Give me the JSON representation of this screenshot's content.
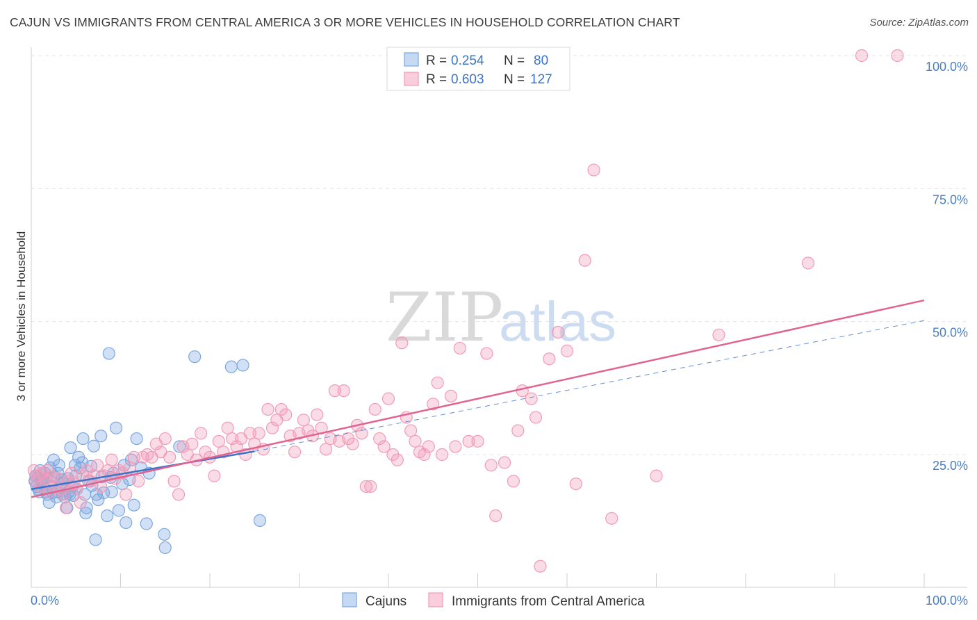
{
  "header": {
    "title": "CAJUN VS IMMIGRANTS FROM CENTRAL AMERICA 3 OR MORE VEHICLES IN HOUSEHOLD CORRELATION CHART",
    "source": "Source: ZipAtlas.com"
  },
  "watermark": {
    "zip": "ZIP",
    "atlas": "atlas"
  },
  "chart_data": {
    "type": "scatter",
    "ylabel": "3 or more Vehicles in Household",
    "xlim": [
      0,
      100
    ],
    "ylim": [
      0,
      105
    ],
    "x_tick_labels": [
      "0.0%",
      "100.0%"
    ],
    "y_ticks": [
      25,
      50,
      75,
      100
    ],
    "y_tick_labels": [
      "25.0%",
      "50.0%",
      "75.0%",
      "100.0%"
    ],
    "grid": true,
    "legend_position": "top-center",
    "stats": [
      {
        "r_label": "R =",
        "r_value": "0.254",
        "n_label": "N =",
        "n_value": "80"
      },
      {
        "r_label": "R =",
        "r_value": "0.603",
        "n_label": "N =",
        "n_value": "127"
      }
    ],
    "series": [
      {
        "name": "Cajuns",
        "color": "#7ba7e0",
        "line_color": "#3b73c9",
        "trend": {
          "x0": 0,
          "y0": 18.5,
          "x1": 25,
          "y1": 25.6
        },
        "trend_ext": {
          "x0": 25,
          "y0": 25.6,
          "x1": 100,
          "y1": 50.2
        },
        "points": [
          [
            0.5,
            21
          ],
          [
            0.6,
            19
          ],
          [
            0.8,
            18.5
          ],
          [
            1,
            22
          ],
          [
            1.1,
            20
          ],
          [
            1.2,
            20.3
          ],
          [
            1.3,
            19.6
          ],
          [
            1.5,
            21.5
          ],
          [
            1.6,
            18
          ],
          [
            1.8,
            17.5
          ],
          [
            2,
            16
          ],
          [
            2.1,
            22.5
          ],
          [
            2.2,
            19
          ],
          [
            2.4,
            17.8
          ],
          [
            2.5,
            24
          ],
          [
            2.6,
            20.8
          ],
          [
            2.8,
            17
          ],
          [
            3,
            21.5
          ],
          [
            3.1,
            23
          ],
          [
            3.3,
            18.8
          ],
          [
            3.5,
            17.5
          ],
          [
            3.6,
            19.8
          ],
          [
            3.8,
            17
          ],
          [
            4,
            15
          ],
          [
            4.1,
            20.5
          ],
          [
            4.2,
            18
          ],
          [
            4.4,
            26.3
          ],
          [
            4.6,
            19
          ],
          [
            4.7,
            17.3
          ],
          [
            4.9,
            23
          ],
          [
            5,
            21
          ],
          [
            5.1,
            18.5
          ],
          [
            5.3,
            24.5
          ],
          [
            5.5,
            22.5
          ],
          [
            5.7,
            23.5
          ],
          [
            5.8,
            28
          ],
          [
            6,
            17.5
          ],
          [
            6.1,
            14
          ],
          [
            6.2,
            15
          ],
          [
            6.4,
            20
          ],
          [
            6.7,
            22.8
          ],
          [
            7,
            26.6
          ],
          [
            7.2,
            9
          ],
          [
            7.3,
            17.5
          ],
          [
            7.5,
            16.5
          ],
          [
            7.8,
            28.5
          ],
          [
            7.9,
            20.8
          ],
          [
            8.1,
            17.8
          ],
          [
            8.5,
            13.5
          ],
          [
            8.7,
            44
          ],
          [
            8.9,
            20.7
          ],
          [
            9.2,
            21.5
          ],
          [
            9.5,
            30
          ],
          [
            9.8,
            14.5
          ],
          [
            10.2,
            19.5
          ],
          [
            10.4,
            23
          ],
          [
            10.6,
            12.2
          ],
          [
            11,
            20.3
          ],
          [
            11.2,
            24
          ],
          [
            11.5,
            15.5
          ],
          [
            11.8,
            28
          ],
          [
            12.3,
            22.5
          ],
          [
            12.9,
            12
          ],
          [
            13.2,
            21.5
          ],
          [
            14.9,
            10
          ],
          [
            15,
            7.5
          ],
          [
            16.6,
            26.5
          ],
          [
            18.3,
            43.4
          ],
          [
            22.4,
            41.5
          ],
          [
            23.7,
            41.8
          ],
          [
            25.6,
            12.6
          ],
          [
            0.9,
            18
          ],
          [
            1.7,
            20.6
          ],
          [
            3.4,
            20.3
          ],
          [
            6.8,
            19.2
          ],
          [
            9,
            18
          ],
          [
            2.9,
            18
          ],
          [
            4.3,
            17.5
          ],
          [
            0.4,
            20
          ],
          [
            0.7,
            21
          ]
        ]
      },
      {
        "name": "Immigrants from Central America",
        "color": "#f19bb7",
        "line_color": "#e0648f",
        "trend": {
          "x0": 0,
          "y0": 17,
          "x1": 100,
          "y1": 54
        },
        "points": [
          [
            0.3,
            22
          ],
          [
            0.5,
            20
          ],
          [
            0.7,
            21
          ],
          [
            1,
            19
          ],
          [
            1.2,
            21.5
          ],
          [
            1.5,
            20.5
          ],
          [
            1.8,
            22
          ],
          [
            2,
            18
          ],
          [
            2.3,
            20.8
          ],
          [
            2.6,
            19
          ],
          [
            3,
            20.5
          ],
          [
            3.3,
            18.5
          ],
          [
            3.6,
            17.5
          ],
          [
            3.9,
            15
          ],
          [
            4.2,
            20
          ],
          [
            4.5,
            21.5
          ],
          [
            4.8,
            19.5
          ],
          [
            5.1,
            18.5
          ],
          [
            5.5,
            16
          ],
          [
            5.8,
            21
          ],
          [
            6.2,
            22
          ],
          [
            6.6,
            20
          ],
          [
            7,
            21
          ],
          [
            7.4,
            23
          ],
          [
            7.8,
            19
          ],
          [
            8.2,
            21
          ],
          [
            8.6,
            22
          ],
          [
            9,
            24
          ],
          [
            9.4,
            20.5
          ],
          [
            9.8,
            22
          ],
          [
            10.2,
            21.5
          ],
          [
            10.6,
            17.5
          ],
          [
            11,
            22.5
          ],
          [
            11.5,
            24.5
          ],
          [
            12,
            20
          ],
          [
            12.5,
            24.5
          ],
          [
            13,
            25
          ],
          [
            13.5,
            24.5
          ],
          [
            14,
            27
          ],
          [
            14.5,
            25.5
          ],
          [
            15,
            28
          ],
          [
            15.5,
            24.5
          ],
          [
            16,
            20
          ],
          [
            16.5,
            17.5
          ],
          [
            17,
            26.5
          ],
          [
            17.5,
            25
          ],
          [
            18,
            27
          ],
          [
            18.5,
            24
          ],
          [
            19,
            29
          ],
          [
            19.5,
            25.5
          ],
          [
            20,
            24.5
          ],
          [
            20.5,
            21
          ],
          [
            21,
            27.5
          ],
          [
            21.5,
            25.5
          ],
          [
            22,
            30
          ],
          [
            22.5,
            28
          ],
          [
            23,
            26.5
          ],
          [
            23.5,
            28
          ],
          [
            24,
            25
          ],
          [
            24.5,
            29
          ],
          [
            25,
            27
          ],
          [
            25.5,
            29
          ],
          [
            26,
            26
          ],
          [
            26.5,
            33.5
          ],
          [
            27,
            30
          ],
          [
            27.5,
            31.5
          ],
          [
            28,
            33.5
          ],
          [
            28.5,
            32.5
          ],
          [
            29,
            28.5
          ],
          [
            29.5,
            25.5
          ],
          [
            30,
            29
          ],
          [
            30.5,
            31.5
          ],
          [
            31,
            29.5
          ],
          [
            31.5,
            28.5
          ],
          [
            32,
            32.5
          ],
          [
            32.5,
            30
          ],
          [
            33,
            26
          ],
          [
            33.5,
            28
          ],
          [
            34,
            37
          ],
          [
            34.5,
            27.5
          ],
          [
            35,
            37
          ],
          [
            35.5,
            28
          ],
          [
            36,
            27
          ],
          [
            36.5,
            30.5
          ],
          [
            37,
            29
          ],
          [
            37.5,
            19
          ],
          [
            38,
            19
          ],
          [
            38.5,
            33.5
          ],
          [
            39,
            28
          ],
          [
            39.5,
            26.5
          ],
          [
            40,
            35.5
          ],
          [
            40.5,
            25
          ],
          [
            41,
            24
          ],
          [
            41.5,
            46
          ],
          [
            42,
            32
          ],
          [
            42.5,
            29.5
          ],
          [
            43,
            27.5
          ],
          [
            43.5,
            25.5
          ],
          [
            44,
            25
          ],
          [
            44.5,
            26.5
          ],
          [
            45,
            34.5
          ],
          [
            45.5,
            38.5
          ],
          [
            46,
            25
          ],
          [
            47,
            36
          ],
          [
            47.5,
            26.5
          ],
          [
            48,
            45
          ],
          [
            49,
            27.5
          ],
          [
            50,
            27.5
          ],
          [
            51,
            44
          ],
          [
            51.5,
            23
          ],
          [
            52,
            13.5
          ],
          [
            53,
            23.5
          ],
          [
            54,
            20
          ],
          [
            54.5,
            29.5
          ],
          [
            55,
            37
          ],
          [
            56,
            35.5
          ],
          [
            56.5,
            32
          ],
          [
            58,
            43
          ],
          [
            59,
            48
          ],
          [
            60,
            44.5
          ],
          [
            61,
            19.5
          ],
          [
            63,
            78.5
          ],
          [
            65,
            13
          ],
          [
            70,
            21
          ],
          [
            77,
            47.5
          ],
          [
            87,
            61
          ],
          [
            93,
            100
          ],
          [
            97,
            100
          ],
          [
            62,
            61.5
          ],
          [
            57,
            4
          ]
        ]
      }
    ]
  }
}
